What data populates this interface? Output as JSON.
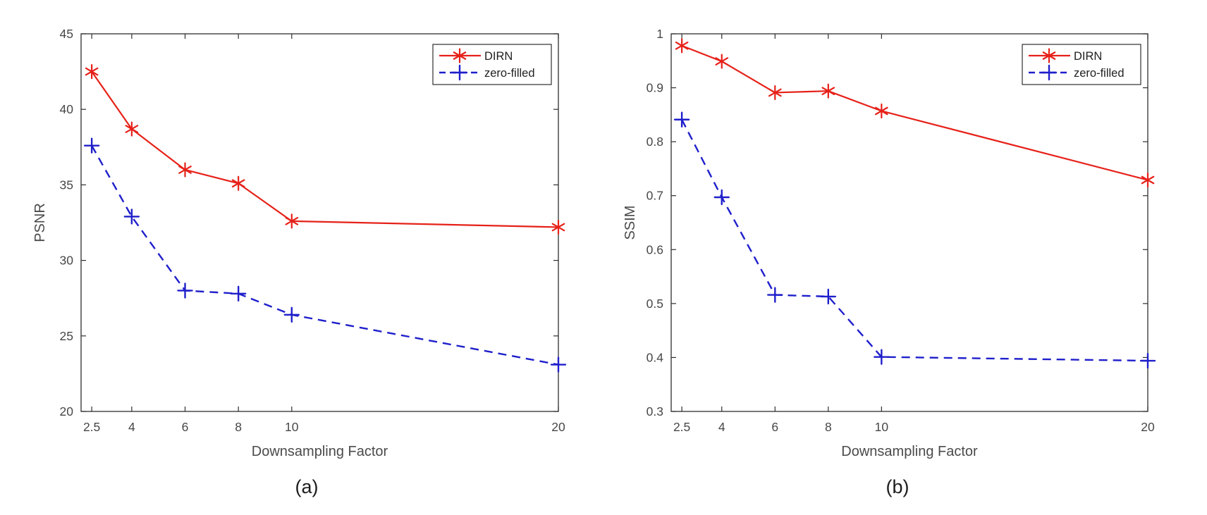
{
  "figure": {
    "caption_a": "(a)",
    "caption_b": "(b)"
  },
  "style": {
    "background": "#ffffff",
    "axis_color": "#2e2e2e",
    "tick_label_color": "#474747",
    "axis_label_color": "#4a4a4a",
    "caption_color": "#1c1c1c",
    "legend_border_color": "#2e2e2e",
    "dirn_red": "#e62119",
    "zero_filled_blue": "#1f1fcb"
  },
  "chart_data": [
    {
      "type": "line",
      "panel": "a",
      "title": "",
      "xlabel": "Downsampling Factor",
      "ylabel": "PSNR",
      "x": [
        2.5,
        4,
        6,
        8,
        10,
        20
      ],
      "xticks": [
        2.5,
        4,
        6,
        8,
        10,
        20
      ],
      "yticks": [
        20,
        25,
        30,
        35,
        40,
        45
      ],
      "xlim": [
        2.1,
        20.0
      ],
      "ylim": [
        20,
        45
      ],
      "grid": false,
      "legend_position": "northeast",
      "series": [
        {
          "name": "DIRN",
          "color": "#e62119",
          "line": "solid",
          "marker": "asterisk",
          "values": [
            42.5,
            38.7,
            36.0,
            35.1,
            32.6,
            32.2
          ]
        },
        {
          "name": "zero-filled",
          "color": "#1f1fcb",
          "line": "dashed",
          "marker": "plus",
          "values": [
            37.6,
            32.9,
            28.0,
            27.8,
            26.4,
            23.1
          ]
        }
      ]
    },
    {
      "type": "line",
      "panel": "b",
      "title": "",
      "xlabel": "Downsampling Factor",
      "ylabel": "SSIM",
      "x": [
        2.5,
        4,
        6,
        8,
        10,
        20
      ],
      "xticks": [
        2.5,
        4,
        6,
        8,
        10,
        20
      ],
      "yticks": [
        0.3,
        0.4,
        0.5,
        0.6,
        0.7,
        0.8,
        0.9,
        1
      ],
      "xlim": [
        2.1,
        20.0
      ],
      "ylim": [
        0.3,
        1.0
      ],
      "grid": false,
      "legend_position": "northeast",
      "series": [
        {
          "name": "DIRN",
          "color": "#e62119",
          "line": "solid",
          "marker": "asterisk",
          "values": [
            0.978,
            0.949,
            0.891,
            0.894,
            0.857,
            0.729
          ]
        },
        {
          "name": "zero-filled",
          "color": "#1f1fcb",
          "line": "dashed",
          "marker": "plus",
          "values": [
            0.841,
            0.697,
            0.516,
            0.513,
            0.401,
            0.394
          ]
        }
      ]
    }
  ]
}
